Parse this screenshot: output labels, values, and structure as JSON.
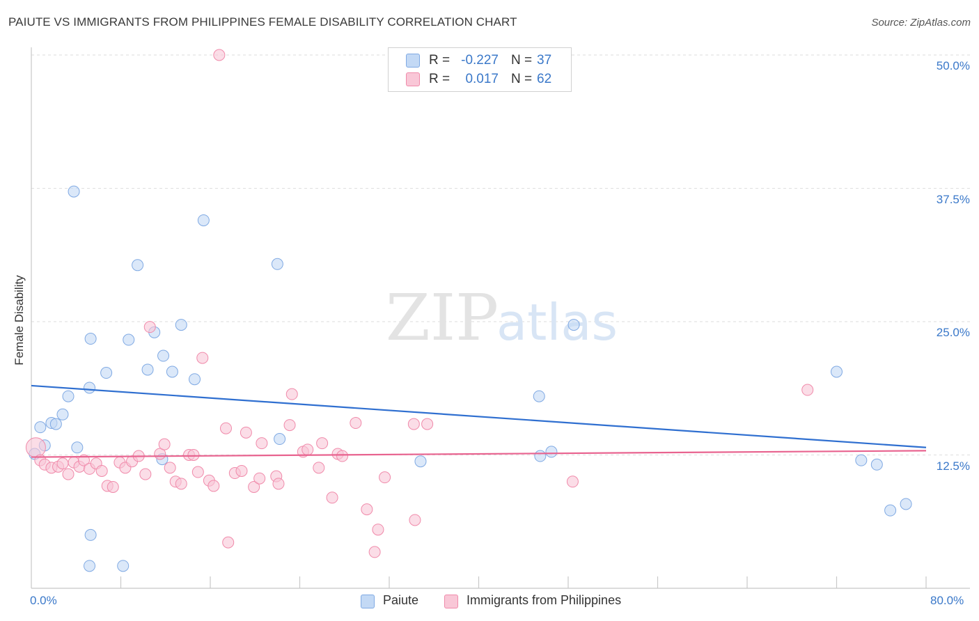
{
  "chart_data": {
    "type": "scatter",
    "title": "PAIUTE VS IMMIGRANTS FROM PHILIPPINES FEMALE DISABILITY CORRELATION CHART",
    "source": "Source: ZipAtlas.com",
    "ylabel": "Female Disability",
    "xlim": [
      0,
      80
    ],
    "ylim": [
      0,
      50
    ],
    "x_tick_labels": [
      "0.0%",
      "80.0%"
    ],
    "y_ticks": [
      {
        "value": 12.5,
        "label": "12.5%"
      },
      {
        "value": 25.0,
        "label": "25.0%"
      },
      {
        "value": 37.5,
        "label": "37.5%"
      },
      {
        "value": 50.0,
        "label": "50.0%"
      }
    ],
    "watermark": {
      "part1": "ZIP",
      "part2": "atlas"
    },
    "series": [
      {
        "name": "Paiute",
        "color": "#7fa9e3",
        "fill": "#c3d9f5",
        "line_color": "#2f6fd0",
        "R": "-0.227",
        "N": "37",
        "trend": {
          "x": [
            0,
            80
          ],
          "y": [
            19.0,
            13.2
          ]
        },
        "points": [
          [
            0.3,
            12.6
          ],
          [
            0.8,
            15.1
          ],
          [
            1.2,
            13.4
          ],
          [
            1.8,
            15.5
          ],
          [
            2.2,
            15.4
          ],
          [
            2.8,
            16.3
          ],
          [
            3.3,
            18.0
          ],
          [
            4.1,
            13.2
          ],
          [
            3.8,
            37.2
          ],
          [
            5.3,
            23.4
          ],
          [
            5.3,
            5.0
          ],
          [
            6.7,
            20.2
          ],
          [
            5.2,
            2.1
          ],
          [
            8.2,
            2.1
          ],
          [
            8.7,
            23.3
          ],
          [
            9.5,
            30.3
          ],
          [
            10.4,
            20.5
          ],
          [
            11.0,
            24.0
          ],
          [
            11.7,
            12.1
          ],
          [
            11.8,
            21.8
          ],
          [
            12.6,
            20.3
          ],
          [
            13.4,
            24.7
          ],
          [
            14.6,
            19.6
          ],
          [
            15.4,
            34.5
          ],
          [
            22.0,
            30.4
          ],
          [
            22.2,
            14.0
          ],
          [
            34.8,
            11.9
          ],
          [
            45.4,
            18.0
          ],
          [
            45.5,
            12.4
          ],
          [
            46.5,
            12.8
          ],
          [
            48.5,
            24.7
          ],
          [
            72.0,
            20.3
          ],
          [
            74.2,
            12.0
          ],
          [
            75.6,
            11.6
          ],
          [
            76.8,
            7.3
          ],
          [
            78.2,
            7.9
          ],
          [
            5.2,
            18.8
          ]
        ]
      },
      {
        "name": "Immigrants from Philippines",
        "color": "#f08aaa",
        "fill": "#f9c7d7",
        "line_color": "#e8638f",
        "R": "0.017",
        "N": "62",
        "trend": {
          "x": [
            0,
            80
          ],
          "y": [
            12.3,
            12.9
          ]
        },
        "points": [
          [
            0.4,
            13.2
          ],
          [
            0.8,
            12.0
          ],
          [
            1.2,
            11.6
          ],
          [
            1.8,
            11.3
          ],
          [
            2.4,
            11.4
          ],
          [
            2.8,
            11.7
          ],
          [
            3.3,
            10.7
          ],
          [
            3.8,
            11.8
          ],
          [
            4.3,
            11.4
          ],
          [
            4.7,
            12.0
          ],
          [
            5.2,
            11.2
          ],
          [
            5.8,
            11.7
          ],
          [
            6.3,
            11.0
          ],
          [
            6.8,
            9.6
          ],
          [
            7.3,
            9.5
          ],
          [
            7.9,
            11.8
          ],
          [
            8.4,
            11.3
          ],
          [
            9.0,
            11.9
          ],
          [
            9.6,
            12.4
          ],
          [
            10.2,
            10.7
          ],
          [
            10.6,
            24.5
          ],
          [
            11.5,
            12.6
          ],
          [
            11.9,
            13.5
          ],
          [
            12.4,
            11.3
          ],
          [
            12.9,
            10.0
          ],
          [
            13.4,
            9.8
          ],
          [
            14.1,
            12.5
          ],
          [
            14.5,
            12.5
          ],
          [
            14.9,
            10.9
          ],
          [
            15.3,
            21.6
          ],
          [
            15.9,
            10.1
          ],
          [
            16.3,
            9.6
          ],
          [
            16.8,
            50.0
          ],
          [
            17.4,
            15.0
          ],
          [
            17.6,
            4.3
          ],
          [
            18.2,
            10.8
          ],
          [
            18.8,
            11.0
          ],
          [
            19.2,
            14.6
          ],
          [
            19.9,
            9.5
          ],
          [
            20.4,
            10.3
          ],
          [
            20.6,
            13.6
          ],
          [
            21.9,
            10.5
          ],
          [
            22.1,
            9.8
          ],
          [
            23.1,
            15.3
          ],
          [
            23.3,
            18.2
          ],
          [
            24.3,
            12.8
          ],
          [
            24.7,
            13.0
          ],
          [
            25.7,
            11.3
          ],
          [
            26.0,
            13.6
          ],
          [
            26.9,
            8.5
          ],
          [
            27.4,
            12.6
          ],
          [
            27.8,
            12.4
          ],
          [
            29.0,
            15.5
          ],
          [
            30.0,
            7.4
          ],
          [
            31.0,
            5.5
          ],
          [
            30.7,
            3.4
          ],
          [
            31.6,
            10.4
          ],
          [
            34.2,
            15.4
          ],
          [
            34.3,
            6.4
          ],
          [
            35.4,
            15.4
          ],
          [
            48.4,
            10.0
          ],
          [
            69.4,
            18.6
          ]
        ]
      }
    ]
  }
}
